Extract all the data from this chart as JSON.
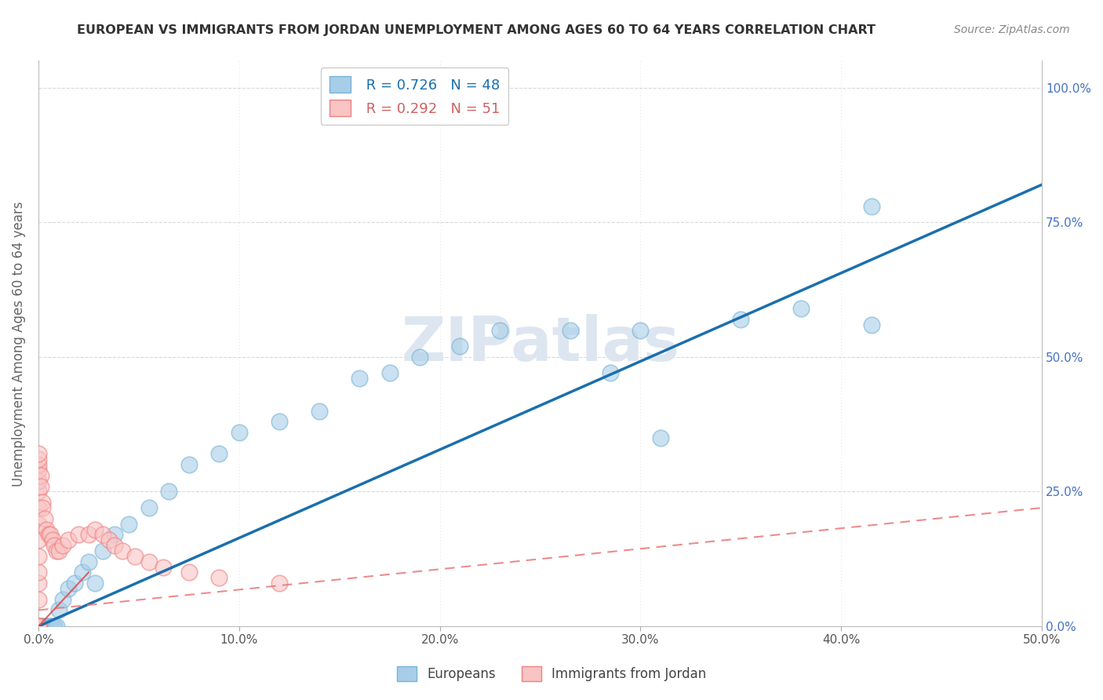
{
  "title": "EUROPEAN VS IMMIGRANTS FROM JORDAN UNEMPLOYMENT AMONG AGES 60 TO 64 YEARS CORRELATION CHART",
  "source": "Source: ZipAtlas.com",
  "ylabel": "Unemployment Among Ages 60 to 64 years",
  "legend_eu_r": "R = 0.726",
  "legend_eu_n": "N = 48",
  "legend_jo_r": "R = 0.292",
  "legend_jo_n": "N = 51",
  "eu_color": "#a8cde8",
  "eu_edge_color": "#7ab3d4",
  "jo_color": "#f9c4c4",
  "jo_edge_color": "#f08080",
  "line_eu_color": "#1a6fad",
  "line_jo_color": "#e87878",
  "line_jo_solid_color": "#e05050",
  "watermark": "ZIPatlas",
  "watermark_color": "#dde6f0",
  "background_color": "#ffffff",
  "grid_color": "#d0d0d0",
  "title_color": "#333333",
  "source_color": "#888888",
  "tick_color": "#555555",
  "right_tick_color": "#4472c4",
  "xlim": [
    0.0,
    0.5
  ],
  "ylim": [
    0.0,
    1.05
  ],
  "eu_line_x": [
    0.0,
    0.5
  ],
  "eu_line_y": [
    0.0,
    0.82
  ],
  "jo_line_x": [
    0.0,
    0.5
  ],
  "jo_line_y": [
    0.03,
    0.22
  ],
  "eu_x": [
    0.0,
    0.0,
    0.0,
    0.0,
    0.0,
    0.0,
    0.0,
    0.001,
    0.001,
    0.002,
    0.002,
    0.003,
    0.004,
    0.005,
    0.006,
    0.007,
    0.008,
    0.009,
    0.01,
    0.012,
    0.015,
    0.018,
    0.022,
    0.025,
    0.028,
    0.032,
    0.038,
    0.045,
    0.055,
    0.065,
    0.075,
    0.09,
    0.1,
    0.12,
    0.14,
    0.16,
    0.175,
    0.19,
    0.21,
    0.23,
    0.265,
    0.285,
    0.3,
    0.31,
    0.35,
    0.38,
    0.415,
    0.415
  ],
  "eu_y": [
    0.0,
    0.0,
    0.0,
    0.0,
    0.0,
    0.0,
    0.0,
    0.0,
    0.0,
    0.0,
    0.0,
    0.0,
    0.0,
    0.0,
    0.0,
    0.0,
    0.0,
    0.0,
    0.03,
    0.05,
    0.07,
    0.08,
    0.1,
    0.12,
    0.08,
    0.14,
    0.17,
    0.19,
    0.22,
    0.25,
    0.3,
    0.32,
    0.36,
    0.38,
    0.4,
    0.46,
    0.47,
    0.5,
    0.52,
    0.55,
    0.55,
    0.47,
    0.55,
    0.35,
    0.57,
    0.59,
    0.56,
    0.78
  ],
  "jo_x": [
    0.0,
    0.0,
    0.0,
    0.0,
    0.0,
    0.0,
    0.0,
    0.0,
    0.0,
    0.0,
    0.0,
    0.0,
    0.0,
    0.0,
    0.0,
    0.0,
    0.0,
    0.0,
    0.0,
    0.0,
    0.0,
    0.0,
    0.0,
    0.0,
    0.001,
    0.001,
    0.002,
    0.002,
    0.003,
    0.004,
    0.005,
    0.006,
    0.007,
    0.008,
    0.009,
    0.01,
    0.012,
    0.015,
    0.02,
    0.025,
    0.028,
    0.032,
    0.035,
    0.038,
    0.042,
    0.048,
    0.055,
    0.062,
    0.075,
    0.09,
    0.12
  ],
  "jo_y": [
    0.0,
    0.0,
    0.0,
    0.0,
    0.0,
    0.0,
    0.0,
    0.0,
    0.0,
    0.0,
    0.0,
    0.05,
    0.08,
    0.1,
    0.13,
    0.16,
    0.19,
    0.22,
    0.25,
    0.27,
    0.29,
    0.3,
    0.31,
    0.32,
    0.28,
    0.26,
    0.23,
    0.22,
    0.2,
    0.18,
    0.17,
    0.17,
    0.16,
    0.15,
    0.14,
    0.14,
    0.15,
    0.16,
    0.17,
    0.17,
    0.18,
    0.17,
    0.16,
    0.15,
    0.14,
    0.13,
    0.12,
    0.11,
    0.1,
    0.09,
    0.08
  ]
}
